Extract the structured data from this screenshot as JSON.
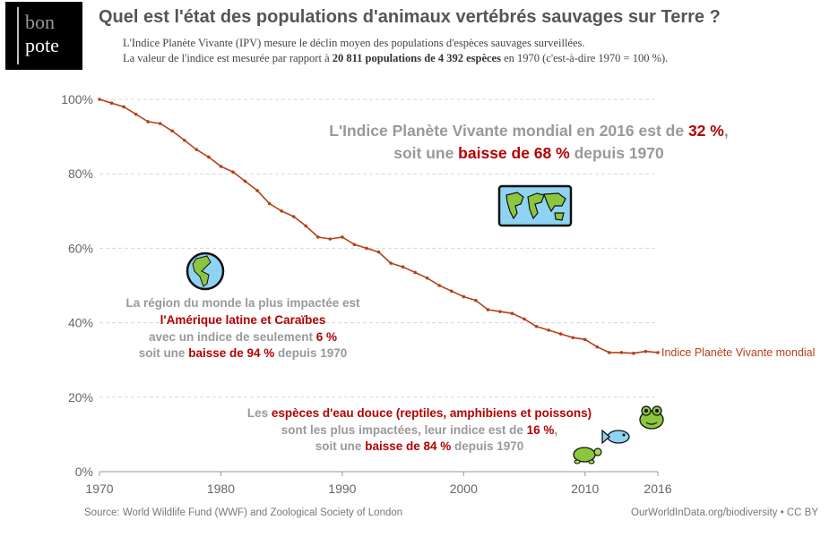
{
  "header": {
    "title": "Quel est l'état des populations d'animaux vertébrés sauvages sur Terre ?",
    "subtitle_line1": "L'Indice Planète Vivante (IPV) mesure le déclin moyen des populations d'espèces sauvages surveillées.",
    "subtitle_line2_pre": "La valeur de l'indice est mesurée par rapport à ",
    "subtitle_line2_bold": "20 811 populations de 4 392 espèces",
    "subtitle_line2_post": " en 1970 (c'est-à-dire 1970 = 100 %).",
    "logo_text_top": "bon",
    "logo_text_bottom": "pote"
  },
  "annotations": {
    "global": {
      "line1_pre": "L'Indice Planète Vivante mondial en 2016 est de ",
      "line1_red": "32 %",
      "line1_post": ",",
      "line2_pre": "soit une ",
      "line2_red": "baisse de 68 %",
      "line2_post": " depuis 1970"
    },
    "latam": {
      "line1": "La région du monde la plus impactée est",
      "line2_red": "l'Amérique latine et Caraïbes",
      "line3_pre": "avec un indice de seulement ",
      "line3_red": "6 %",
      "line4_pre": "soit une ",
      "line4_red": "baisse de 94 %",
      "line4_post": " depuis 1970"
    },
    "freshwater": {
      "line1_pre": "Les ",
      "line1_red": "espèces d'eau douce (reptiles, amphibiens et poissons)",
      "line2_pre": "sont les plus impactées, leur indice est de ",
      "line2_red": "16 %",
      "line2_post": ",",
      "line3_pre": "soit une ",
      "line3_red": "baisse de 84 %",
      "line3_post": " depuis 1970"
    }
  },
  "icons": [
    "world-map-icon",
    "globe-americas-icon",
    "turtle-icon",
    "fish-icon",
    "frog-icon"
  ],
  "colors": {
    "line": "#b5401a",
    "highlight": "#b30000",
    "muted": "#999999",
    "axis_text": "#666666"
  },
  "chart_data": {
    "type": "line",
    "series": [
      {
        "name": "Indice Planète Vivante mondial",
        "x": [
          1970,
          1971,
          1972,
          1973,
          1974,
          1975,
          1976,
          1977,
          1978,
          1979,
          1980,
          1981,
          1982,
          1983,
          1984,
          1985,
          1986,
          1987,
          1988,
          1989,
          1990,
          1991,
          1992,
          1993,
          1994,
          1995,
          1996,
          1997,
          1998,
          1999,
          2000,
          2001,
          2002,
          2003,
          2004,
          2005,
          2006,
          2007,
          2008,
          2009,
          2010,
          2011,
          2012,
          2013,
          2014,
          2015,
          2016
        ],
        "values": [
          100,
          99,
          98,
          96,
          94,
          93.5,
          91.5,
          89,
          86.5,
          84.5,
          82,
          80.5,
          78,
          75.5,
          72,
          70,
          68.5,
          66,
          63,
          62.5,
          63,
          61,
          60,
          59,
          56,
          55,
          53.5,
          52,
          50,
          48.5,
          47,
          46,
          43.5,
          43,
          42.5,
          41,
          39,
          38,
          37,
          36,
          35.5,
          33.5,
          32,
          32,
          31.8,
          32.3,
          32
        ]
      }
    ],
    "xlim": [
      1970,
      2016
    ],
    "ylim": [
      0,
      100
    ],
    "xticks": [
      1970,
      1980,
      1990,
      2000,
      2010,
      2016
    ],
    "yticks": [
      0,
      20,
      40,
      60,
      80,
      100
    ],
    "ytick_labels": [
      "0%",
      "20%",
      "40%",
      "60%",
      "80%",
      "100%"
    ],
    "grid": "horizontal dashed"
  },
  "footer": {
    "source": "Source: World Wildlife Fund (WWF) and Zoological Society of London",
    "credit": "OurWorldInData.org/biodiversity • CC BY"
  }
}
